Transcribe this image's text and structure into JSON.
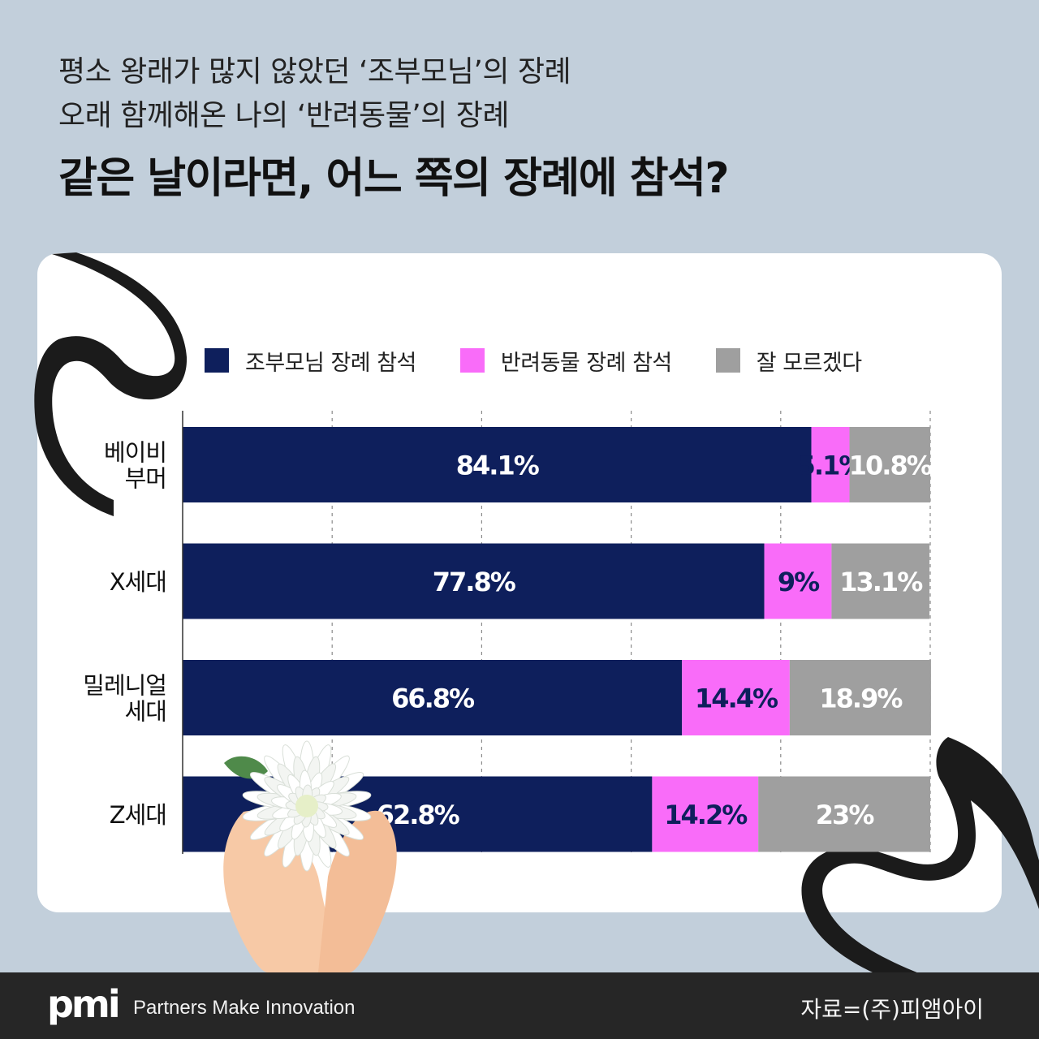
{
  "header": {
    "subtitle_line1": "평소 왕래가 많지 않았던 ‘조부모님’의 장례",
    "subtitle_line2": "오래 함께해온 나의 ‘반려동물’의 장례",
    "title": "같은 날이라면, 어느 쪽의 장례에 참석?"
  },
  "chart_data": {
    "type": "bar",
    "orientation": "horizontal",
    "stacked": true,
    "unit": "%",
    "xlim": [
      0,
      100
    ],
    "grid": "vertical dashed",
    "legend_position": "top",
    "categories": [
      [
        "베이비",
        "부머"
      ],
      [
        "X세대"
      ],
      [
        "밀레니얼",
        "세대"
      ],
      [
        "Z세대"
      ]
    ],
    "series": [
      {
        "name": "조부모님 장례 참석",
        "color": "#0e1f5c",
        "label_color": "#ffffff",
        "values": [
          84.1,
          77.8,
          66.8,
          62.8
        ]
      },
      {
        "name": "반려동물 장례 참석",
        "color": "#f96cf9",
        "label_color": "#0e1f5c",
        "values": [
          5.1,
          9,
          14.4,
          14.2
        ]
      },
      {
        "name": "잘 모르겠다",
        "color": "#9f9f9f",
        "label_color": "#ffffff",
        "values": [
          10.8,
          13.1,
          18.9,
          23
        ]
      }
    ]
  },
  "footer": {
    "logo": "pmi",
    "tagline": "Partners Make Innovation",
    "source": "자료=(주)피앰아이"
  },
  "decoration": {
    "ribbon_color": "#1b1b1b",
    "illustration": "hands-holding-white-chrysanthemum"
  }
}
